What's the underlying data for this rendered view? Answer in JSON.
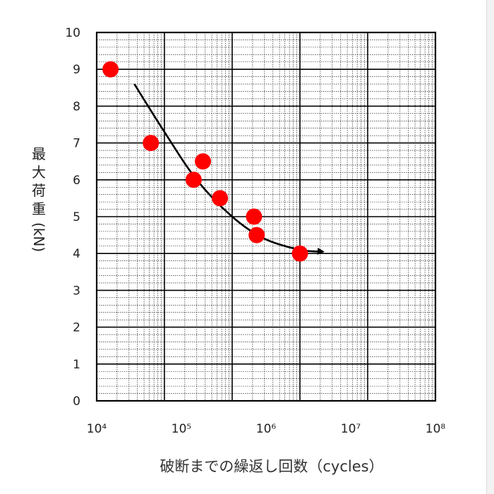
{
  "chart_data": {
    "type": "scatter",
    "xscale": "log",
    "xlim": [
      10000,
      1000000000
    ],
    "ylim": [
      0,
      10
    ],
    "x_tick_labels": [
      "10⁴",
      "10⁵",
      "10⁶",
      "10⁷",
      "10⁸"
    ],
    "y_tick_labels": [
      "0",
      "1",
      "2",
      "3",
      "4",
      "5",
      "6",
      "7",
      "8",
      "9",
      "10"
    ],
    "ylabel_main": "最大荷重",
    "ylabel_unit": "(kN)",
    "xlabel": "破断までの繰返し回数（cycles）",
    "grid": true,
    "points": [
      {
        "x": 16000,
        "y": 9.0
      },
      {
        "x": 63000,
        "y": 7.0
      },
      {
        "x": 270000,
        "y": 6.0
      },
      {
        "x": 370000,
        "y": 6.5
      },
      {
        "x": 660000,
        "y": 5.5
      },
      {
        "x": 2100000,
        "y": 5.0
      },
      {
        "x": 2300000,
        "y": 4.5
      },
      {
        "x": 10000000,
        "y": 4.0
      }
    ],
    "trend_line": {
      "points": [
        {
          "x": 36000,
          "y": 8.6
        },
        {
          "x": 100000,
          "y": 7.3
        },
        {
          "x": 300000,
          "y": 6.0
        },
        {
          "x": 1000000,
          "y": 5.0
        },
        {
          "x": 3000000,
          "y": 4.4
        },
        {
          "x": 10000000,
          "y": 4.1
        },
        {
          "x": 22000000,
          "y": 4.05
        }
      ],
      "arrow": true
    },
    "colors": {
      "points": "#ff0000",
      "trend": "#000000"
    }
  }
}
